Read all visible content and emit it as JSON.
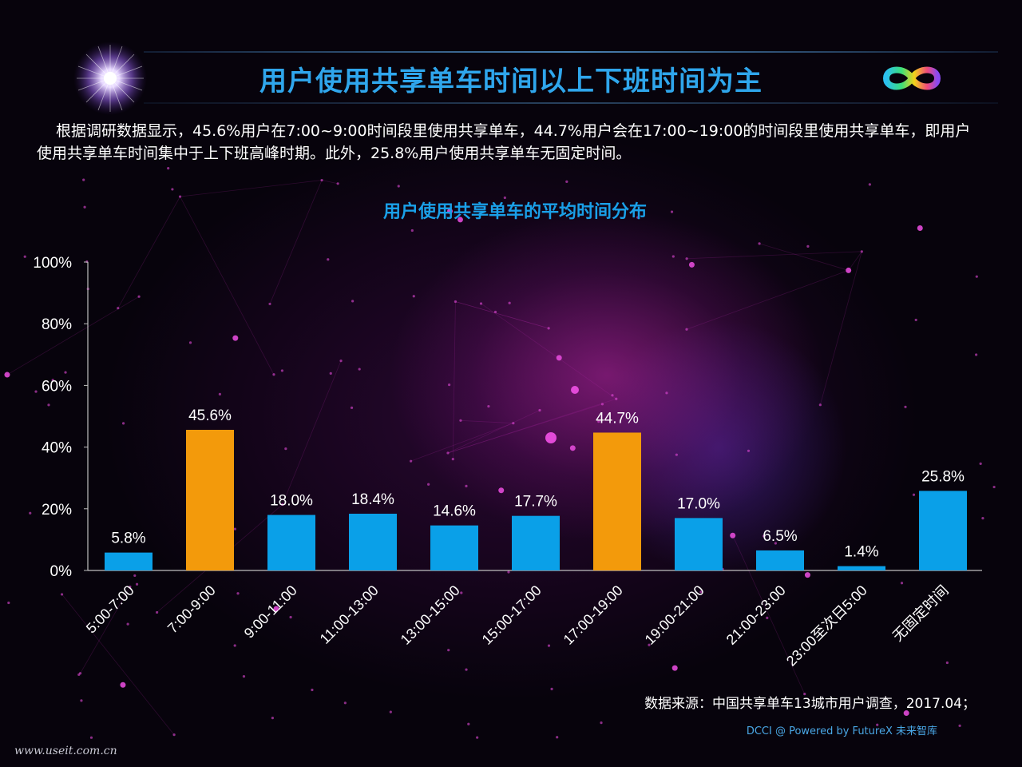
{
  "header": {
    "title": "用户使用共享单车时间以上下班时间为主",
    "description": "根据调研数据显示，45.6%用户在7:00~9:00时间段里使用共享单车，44.7%用户会在17:00~19:00的时间段里使用共享单车，即用户使用共享单车时间集中于上下班高峰时期。此外，25.8%用户使用共享单车无固定时间。"
  },
  "icons": {
    "top_left": "starburst-icon",
    "top_right": "infinity-logo-icon"
  },
  "chart_data": {
    "type": "bar",
    "title": "用户使用共享单车的平均时间分布",
    "xlabel": "",
    "ylabel": "",
    "categories": [
      "5:00-7:00",
      "7:00-9:00",
      "9:00-11:00",
      "11:00-13:00",
      "13:00-15:00",
      "15:00-17:00",
      "17:00-19:00",
      "19:00-21:00",
      "21:00-23:00",
      "23:00至次日5:00",
      "无固定时间"
    ],
    "values": [
      5.8,
      45.6,
      18.0,
      18.4,
      14.6,
      17.7,
      44.7,
      17.0,
      6.5,
      1.4,
      25.8
    ],
    "value_labels": [
      "5.8%",
      "45.6%",
      "18.0%",
      "18.4%",
      "14.6%",
      "17.7%",
      "44.7%",
      "17.0%",
      "6.5%",
      "1.4%",
      "25.8%"
    ],
    "highlight": [
      false,
      true,
      false,
      false,
      false,
      false,
      true,
      false,
      false,
      false,
      false
    ],
    "ylim": [
      0,
      100
    ],
    "yticks": [
      0,
      20,
      40,
      60,
      80,
      100
    ],
    "ytick_labels": [
      "0%",
      "20%",
      "40%",
      "60%",
      "80%",
      "100%"
    ],
    "grid": false,
    "legend": "none",
    "colors": {
      "bar": "#0aa0e8",
      "highlight": "#f39a0b",
      "axis": "#bfbfbf",
      "text": "#ffffff"
    }
  },
  "footer": {
    "source": "数据来源：中国共享单车13城市用户调查，2017.04；",
    "credit": "DCCI @ Powered by FutureX 未来智库",
    "watermark": "www.useit.com.cn"
  }
}
